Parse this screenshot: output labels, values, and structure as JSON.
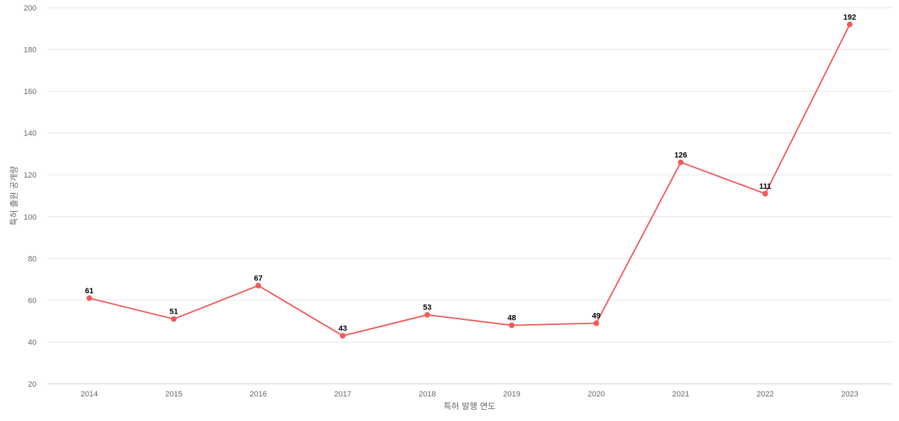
{
  "chart_data": {
    "type": "line",
    "title": "",
    "xlabel": "특허 발행 연도",
    "ylabel": "특허 출원 공개량",
    "categories": [
      "2014",
      "2015",
      "2016",
      "2017",
      "2018",
      "2019",
      "2020",
      "2021",
      "2022",
      "2023"
    ],
    "series": [
      {
        "values": [
          61,
          51,
          67,
          43,
          53,
          48,
          49,
          126,
          111,
          192
        ],
        "color": "#f05a5a"
      }
    ],
    "ylim": [
      20,
      200
    ],
    "yticks": [
      20,
      40,
      60,
      80,
      100,
      120,
      140,
      160,
      180,
      200
    ],
    "grid": true,
    "legend": "none",
    "data_labels": true
  }
}
